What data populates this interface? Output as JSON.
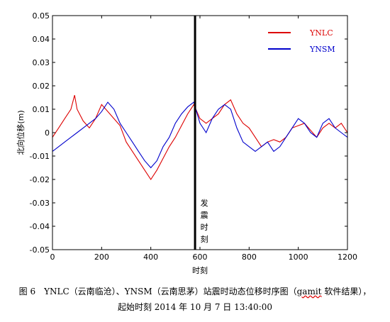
{
  "chart_data": {
    "type": "line",
    "xlabel": "时刻",
    "ylabel": "北向位移(m)",
    "xlim": [
      0,
      1200
    ],
    "ylim": [
      -0.05,
      0.05
    ],
    "x_ticks": [
      "0",
      "200",
      "400",
      "600",
      "800",
      "1000",
      "1200"
    ],
    "y_ticks": [
      "0.05",
      "0.04",
      "0.03",
      "0.02",
      "0.01",
      "0",
      "-0.01",
      "-0.02",
      "-0.03",
      "-0.04",
      "-0.05"
    ],
    "vline": {
      "x": 580,
      "label": "发震时刻",
      "color": "#000000"
    },
    "legend_position": "top-right",
    "series": [
      {
        "name": "YNLC",
        "color": "#dd0000",
        "x": [
          0,
          25,
          50,
          75,
          90,
          100,
          125,
          150,
          175,
          200,
          225,
          250,
          275,
          300,
          325,
          350,
          375,
          400,
          425,
          450,
          475,
          500,
          525,
          550,
          575,
          600,
          625,
          650,
          675,
          700,
          725,
          750,
          775,
          800,
          825,
          850,
          875,
          900,
          925,
          950,
          975,
          1000,
          1025,
          1050,
          1075,
          1100,
          1125,
          1150,
          1175,
          1200
        ],
        "y": [
          -0.002,
          0.002,
          0.006,
          0.01,
          0.016,
          0.01,
          0.005,
          0.002,
          0.006,
          0.012,
          0.009,
          0.006,
          0.003,
          -0.004,
          -0.008,
          -0.012,
          -0.016,
          -0.02,
          -0.016,
          -0.011,
          -0.006,
          -0.002,
          0.003,
          0.008,
          0.012,
          0.006,
          0.004,
          0.006,
          0.008,
          0.012,
          0.014,
          0.008,
          0.004,
          0.002,
          -0.002,
          -0.006,
          -0.004,
          -0.003,
          -0.004,
          -0.002,
          0.002,
          0.003,
          0.004,
          0.001,
          -0.002,
          0.002,
          0.004,
          0.002,
          0.004,
          0.0
        ]
      },
      {
        "name": "YNSM",
        "color": "#0000cc",
        "x": [
          0,
          25,
          50,
          75,
          100,
          125,
          150,
          175,
          200,
          225,
          250,
          275,
          300,
          325,
          350,
          375,
          400,
          425,
          450,
          475,
          500,
          525,
          550,
          575,
          600,
          625,
          650,
          675,
          700,
          725,
          750,
          775,
          800,
          825,
          850,
          875,
          900,
          925,
          950,
          975,
          1000,
          1025,
          1050,
          1075,
          1100,
          1125,
          1150,
          1175,
          1200
        ],
        "y": [
          -0.008,
          -0.006,
          -0.004,
          -0.002,
          0.0,
          0.002,
          0.004,
          0.006,
          0.009,
          0.013,
          0.01,
          0.004,
          0.0,
          -0.004,
          -0.008,
          -0.012,
          -0.015,
          -0.012,
          -0.006,
          -0.002,
          0.004,
          0.008,
          0.011,
          0.013,
          0.004,
          0.0,
          0.006,
          0.01,
          0.012,
          0.01,
          0.002,
          -0.004,
          -0.006,
          -0.008,
          -0.006,
          -0.004,
          -0.008,
          -0.006,
          -0.002,
          0.002,
          0.006,
          0.004,
          0.0,
          -0.002,
          0.004,
          0.006,
          0.002,
          0.0,
          -0.002
        ]
      }
    ]
  },
  "caption": {
    "line1_prefix": "图 6　YNLC（云南临沧）、YNSM（云南思茅）站震时动态位移时序图（",
    "line1_underlined": "gamit",
    "line1_suffix": " 软件结果），",
    "line2": "起始时刻 2014 年 10 月 7 日 13:40:00"
  }
}
